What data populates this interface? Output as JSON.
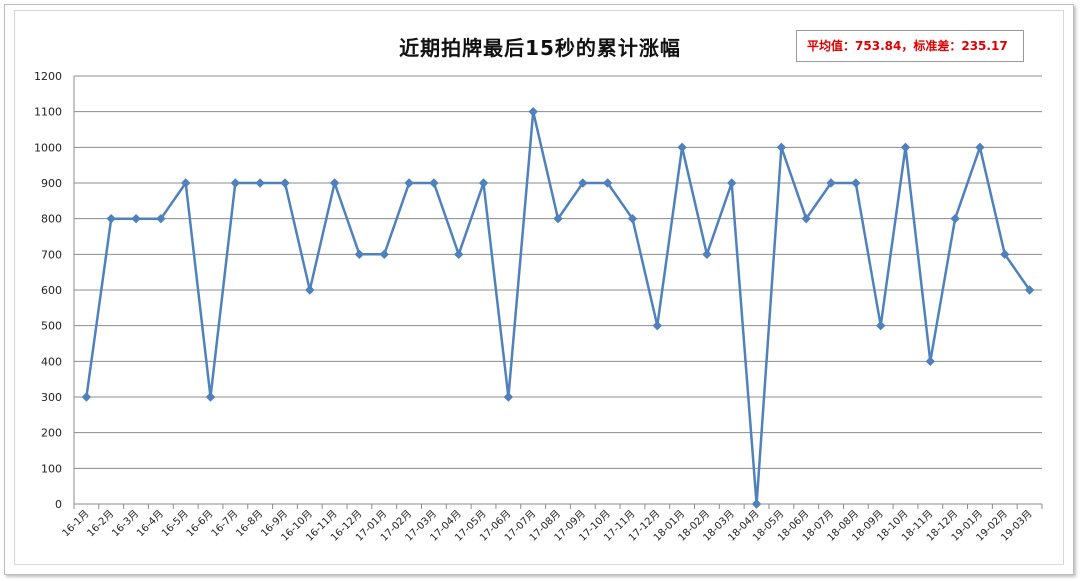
{
  "chart_data": {
    "type": "line",
    "title": "近期拍牌最后15秒的累计涨幅",
    "annotation": {
      "mean_label": "平均值：",
      "mean_value": "753.84",
      "separator": "，",
      "std_label": "标准差：",
      "std_value": "235.17"
    },
    "ylim": [
      0,
      1200
    ],
    "yticks": [
      0,
      100,
      200,
      300,
      400,
      500,
      600,
      700,
      800,
      900,
      1000,
      1100,
      1200
    ],
    "grid": true,
    "legend": "none",
    "categories": [
      "16-1月",
      "16-2月",
      "16-3月",
      "16-4月",
      "16-5月",
      "16-6月",
      "16-7月",
      "16-8月",
      "16-9月",
      "16-10月",
      "16-11月",
      "16-12月",
      "17-01月",
      "17-02月",
      "17-03月",
      "17-04月",
      "17-05月",
      "17-06月",
      "17-07月",
      "17-08月",
      "17-09月",
      "17-10月",
      "17-11月",
      "17-12月",
      "18-01月",
      "18-02月",
      "18-03月",
      "18-04月",
      "18-05月",
      "18-06月",
      "18-07月",
      "18-08月",
      "18-09月",
      "18-10月",
      "18-11月",
      "18-12月",
      "19-01月",
      "19-02月",
      "19-03月"
    ],
    "series": [
      {
        "values": [
          300,
          800,
          800,
          800,
          900,
          300,
          900,
          900,
          900,
          600,
          900,
          700,
          700,
          900,
          900,
          700,
          900,
          300,
          1100,
          800,
          900,
          900,
          800,
          500,
          1000,
          700,
          900,
          0,
          1000,
          800,
          900,
          900,
          500,
          1000,
          400,
          800,
          1000,
          700,
          600
        ]
      }
    ]
  },
  "colors": {
    "line": "#4f81bd",
    "marker": "#4f81bd",
    "grid": "#8c8c8c",
    "annotation": "#e00000"
  }
}
